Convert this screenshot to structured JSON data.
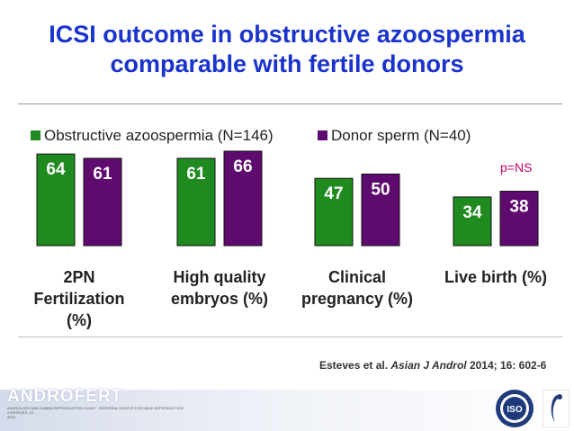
{
  "slide": {
    "title_line1": "ICSI outcome in obstructive azoospermia",
    "title_line2": "comparable with fertile donors",
    "citation_prefix": "Esteves et al. ",
    "citation_journal": "Asian J Androl",
    "citation_suffix": " 2014; 16: 602-6",
    "brand": "ANDROFERT",
    "footer_line1": "ANDROLOGY AND HUMAN REPRODUCTION CLINIC - REFERRAL CENTER FOR MALE REPRODUCTION",
    "footer_line2": "S ESTEVES, 13",
    "footer_line3": "2015",
    "seal_text": "ISO"
  },
  "chart_data": {
    "type": "bar",
    "categories": [
      [
        "2PN",
        "Fertilization",
        "(%)"
      ],
      [
        "High quality",
        "embryos (%)"
      ],
      [
        "Clinical",
        "pregnancy (%)"
      ],
      [
        "Live birth (%)"
      ]
    ],
    "series": [
      {
        "name": "Obstructive azoospermia (N=146)",
        "values": [
          64,
          61,
          47,
          34
        ],
        "color": "#1f8a1f"
      },
      {
        "name": "Donor sperm (N=40)",
        "values": [
          61,
          66,
          50,
          38
        ],
        "color": "#5e0a6e"
      }
    ],
    "annotation": "p=NS",
    "annotation_color": "#cc0066",
    "ylim": [
      0,
      66
    ],
    "legend_position": "top",
    "grid": false
  }
}
